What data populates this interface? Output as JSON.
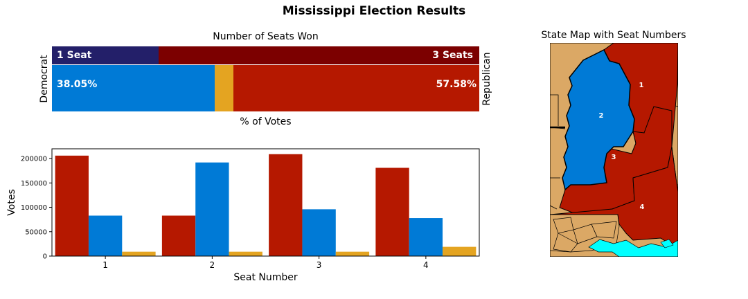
{
  "page": {
    "title": "Mississippi Election Results"
  },
  "colors": {
    "dem": "#007ad6",
    "rep": "#b51800",
    "other": "#e4a421",
    "dem_seat": "#231f69",
    "rep_seat": "#7c0000",
    "land": "#dba865",
    "water": "#00ffff"
  },
  "chart_data": [
    {
      "type": "bar",
      "orientation": "horizontal-stacked",
      "title": "Number of Seats Won",
      "xlabel": "% of Votes",
      "left_label": "Democrat",
      "right_label": "Republican",
      "seats": [
        {
          "party": "Democrat",
          "seats": 1,
          "label": "1 Seat"
        },
        {
          "party": "Republican",
          "seats": 3,
          "label": "3 Seats"
        }
      ],
      "vote_share": [
        {
          "party": "Democrat",
          "value": 38.05,
          "label": "38.05%"
        },
        {
          "party": "Other",
          "value": 4.37,
          "label": ""
        },
        {
          "party": "Republican",
          "value": 57.58,
          "label": "57.58%"
        }
      ]
    },
    {
      "type": "bar",
      "xlabel": "Seat Number",
      "ylabel": "Votes",
      "categories": [
        "1",
        "2",
        "3",
        "4"
      ],
      "ylim": [
        0,
        220000
      ],
      "yticks": [
        0,
        50000,
        100000,
        150000,
        200000
      ],
      "grid": false,
      "series": [
        {
          "values": [
            206000,
            83000,
            209000,
            181000
          ],
          "color": "#b51800"
        },
        {
          "values": [
            83000,
            192000,
            96000,
            78000
          ],
          "color": "#007ad6"
        },
        {
          "values": [
            9000,
            9000,
            9000,
            19000
          ],
          "color": "#e4a421"
        }
      ]
    }
  ],
  "map": {
    "title": "State Map with Seat Numbers",
    "districts": [
      {
        "label": "1",
        "party": "Republican"
      },
      {
        "label": "2",
        "party": "Democrat"
      },
      {
        "label": "3",
        "party": "Republican"
      },
      {
        "label": "4",
        "party": "Republican"
      }
    ]
  }
}
